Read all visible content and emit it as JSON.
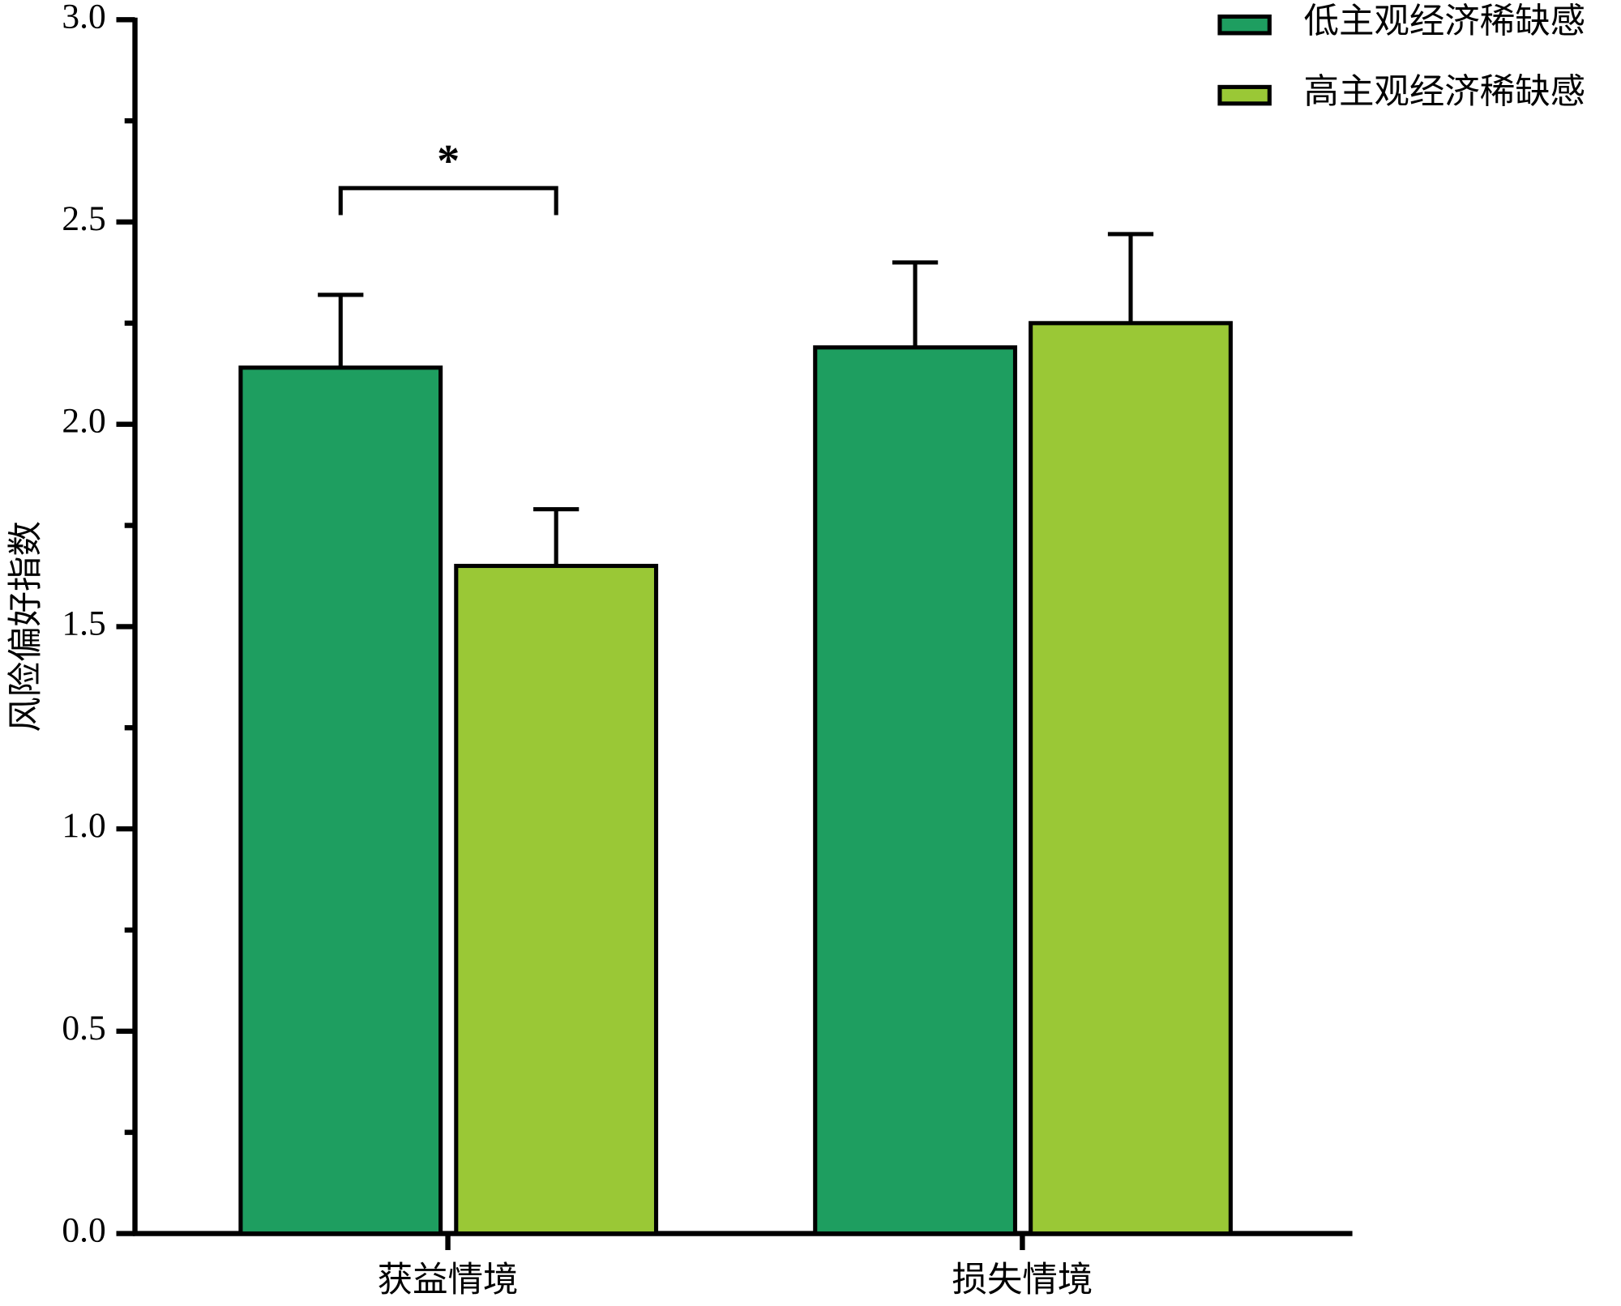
{
  "chart_data": {
    "type": "bar",
    "ylabel": "风险偏好指数",
    "categories": [
      "获益情境",
      "损失情境"
    ],
    "series": [
      {
        "name": "低主观经济稀缺感",
        "color": "#1e9e60",
        "values": [
          2.14,
          2.19
        ],
        "errors": [
          0.18,
          0.21
        ]
      },
      {
        "name": "高主观经济稀缺感",
        "color": "#9ac836",
        "values": [
          1.65,
          2.25
        ],
        "errors": [
          0.14,
          0.22
        ]
      }
    ],
    "ylim": [
      0,
      3
    ],
    "yticks": [
      {
        "value": 0,
        "label": "0.0"
      },
      0.5,
      {
        "value": 1,
        "label": "1.0"
      },
      1.5,
      {
        "value": 2,
        "label": "2.0"
      },
      2.5,
      {
        "value": 3,
        "label": "3.0"
      }
    ],
    "minor_yticks": [
      0.25,
      0.75,
      1.25,
      1.75,
      2.25,
      2.75
    ],
    "annotations": [
      {
        "text": "*",
        "category": 0
      }
    ],
    "legend": "top-right"
  }
}
